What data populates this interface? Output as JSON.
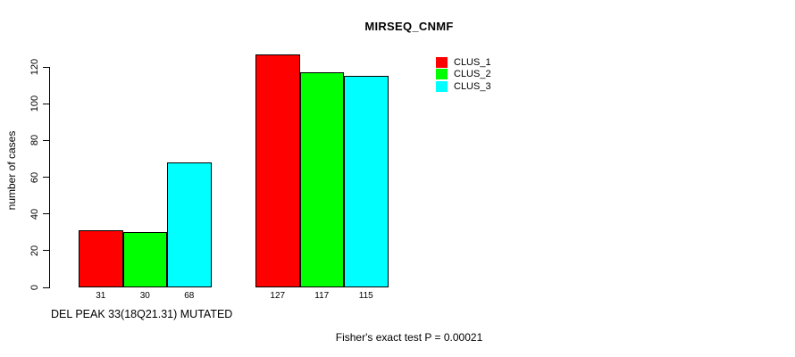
{
  "chart_data": {
    "type": "bar",
    "title": "MIRSEQ_CNMF",
    "ylabel": "number of cases",
    "xlabel": "DEL PEAK 33(18Q21.31) MUTATED",
    "footer": "Fisher's exact test P = 0.00021",
    "series": [
      {
        "name": "CLUS_1",
        "color": "#ff0000",
        "values": [
          31,
          127
        ]
      },
      {
        "name": "CLUS_2",
        "color": "#00ff00",
        "values": [
          30,
          117
        ]
      },
      {
        "name": "CLUS_3",
        "color": "#00ffff",
        "values": [
          68,
          115
        ]
      }
    ],
    "group_count": 2,
    "yticks": [
      0,
      20,
      40,
      60,
      80,
      100,
      120
    ],
    "ylim": [
      0,
      120
    ],
    "grid": false,
    "legend_position": "top-right",
    "bar_values_shown": true
  }
}
